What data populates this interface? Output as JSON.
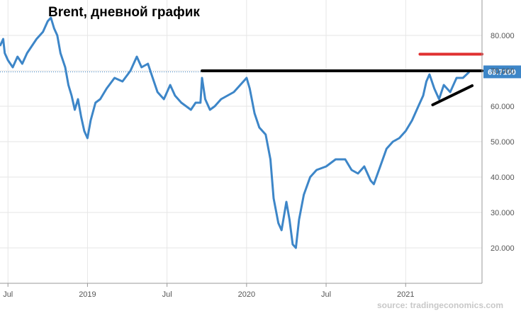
{
  "chart_data": {
    "type": "line",
    "title": "Brent, дневной график",
    "source": "source: tradingeconomics.com",
    "xlabel": "",
    "ylabel": "",
    "x_tick_labels": [
      "Jul",
      "2019",
      "Jul",
      "2020",
      "Jul",
      "2021"
    ],
    "y_tick_labels": [
      "20.000",
      "30.000",
      "40.000",
      "50.000",
      "60.000",
      "70.000",
      "80.000"
    ],
    "ylim": [
      10,
      90
    ],
    "last_value_label": "69.7100",
    "colors": {
      "series": "#3d86c8",
      "last_label_bg": "#3d86c8",
      "resistance": "#000000",
      "target": "#e03030",
      "trendline": "#000000"
    },
    "grid": true,
    "series": [
      {
        "values": [
          [
            2018.45,
            77
          ],
          [
            2018.47,
            79
          ],
          [
            2018.48,
            75
          ],
          [
            2018.5,
            73
          ],
          [
            2018.53,
            71
          ],
          [
            2018.56,
            74
          ],
          [
            2018.59,
            72
          ],
          [
            2018.62,
            75
          ],
          [
            2018.65,
            77
          ],
          [
            2018.68,
            79
          ],
          [
            2018.72,
            81
          ],
          [
            2018.75,
            84
          ],
          [
            2018.77,
            85
          ],
          [
            2018.79,
            82
          ],
          [
            2018.81,
            80
          ],
          [
            2018.83,
            75
          ],
          [
            2018.86,
            71
          ],
          [
            2018.88,
            66
          ],
          [
            2018.9,
            63
          ],
          [
            2018.92,
            59
          ],
          [
            2018.94,
            62
          ],
          [
            2018.96,
            57
          ],
          [
            2018.98,
            53
          ],
          [
            2019.0,
            51
          ],
          [
            2019.02,
            56
          ],
          [
            2019.05,
            61
          ],
          [
            2019.08,
            62
          ],
          [
            2019.12,
            65
          ],
          [
            2019.17,
            68
          ],
          [
            2019.22,
            67
          ],
          [
            2019.27,
            70
          ],
          [
            2019.31,
            74
          ],
          [
            2019.34,
            71
          ],
          [
            2019.38,
            72
          ],
          [
            2019.41,
            68
          ],
          [
            2019.44,
            64
          ],
          [
            2019.48,
            62
          ],
          [
            2019.52,
            66
          ],
          [
            2019.55,
            63
          ],
          [
            2019.59,
            61
          ],
          [
            2019.62,
            60
          ],
          [
            2019.65,
            59
          ],
          [
            2019.68,
            61
          ],
          [
            2019.71,
            61
          ],
          [
            2019.72,
            68
          ],
          [
            2019.74,
            62
          ],
          [
            2019.77,
            59
          ],
          [
            2019.8,
            60
          ],
          [
            2019.84,
            62
          ],
          [
            2019.88,
            63
          ],
          [
            2019.92,
            64
          ],
          [
            2019.96,
            66
          ],
          [
            1995.0,
            null
          ]
        ]
      }
    ],
    "annotations": {
      "resistance_level": 70,
      "resistance_from": 2019.72,
      "target_level": 74.7,
      "target_from": 2021.09,
      "trend_from": [
        2021.17,
        60.4
      ],
      "trend_to": [
        2021.4,
        65.8
      ]
    }
  }
}
